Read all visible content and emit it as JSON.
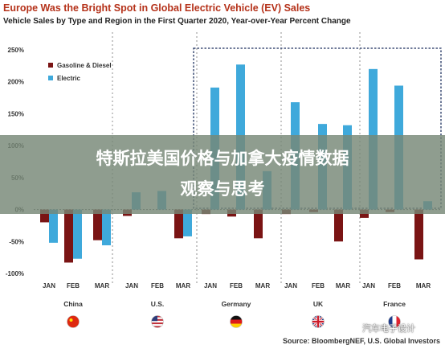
{
  "chart_data": {
    "type": "bar",
    "title": "Europe Was the Bright Spot in Global Electric Vehicle (EV) Sales",
    "subtitle": "Vehicle Sales by Type and Region in the First Quarter 2020, Year-over-Year Percent Change",
    "y_ticks": [
      "250%",
      "200%",
      "150%",
      "100%",
      "50%",
      "0%",
      "-50%",
      "-100%"
    ],
    "ylim": [
      -100,
      250
    ],
    "legend": {
      "placement": "top-left"
    },
    "colors": {
      "gasoline": "#7a1414",
      "electric": "#3fa9db"
    },
    "groups": [
      {
        "region": "China",
        "flag": "china-flag",
        "months": [
          "JAN",
          "FEB",
          "MAR"
        ],
        "series": [
          {
            "name": "Gasoline & Diesel",
            "values": [
              -20,
              -83,
              -48
            ]
          },
          {
            "name": "Electric",
            "values": [
              -52,
              -77,
              -56
            ]
          }
        ]
      },
      {
        "region": "U.S.",
        "flag": "us-flag",
        "months": [
          "JAN",
          "FEB",
          "MAR"
        ],
        "series": [
          {
            "name": "Gasoline & Diesel",
            "values": [
              -10,
              0,
              -45
            ]
          },
          {
            "name": "Electric",
            "values": [
              27,
              29,
              -42
            ]
          }
        ]
      },
      {
        "region": "Germany",
        "flag": "germany-flag",
        "months": [
          "JAN",
          "FEB",
          "MAR"
        ],
        "series": [
          {
            "name": "Gasoline & Diesel",
            "values": [
              -7,
              -11,
              -45
            ]
          },
          {
            "name": "Electric",
            "values": [
              191,
              227,
              60
            ]
          }
        ]
      },
      {
        "region": "UK",
        "flag": "uk-flag",
        "months": [
          "JAN",
          "FEB",
          "MAR"
        ],
        "series": [
          {
            "name": "Gasoline & Diesel",
            "values": [
              -7,
              -4,
              -50
            ]
          },
          {
            "name": "Electric",
            "values": [
              168,
              134,
              132
            ]
          }
        ]
      },
      {
        "region": "France",
        "flag": "france-flag",
        "months": [
          "JAN",
          "FEB",
          "MAR"
        ],
        "series": [
          {
            "name": "Gasoline & Diesel",
            "values": [
              -13,
              -4,
              -78
            ]
          },
          {
            "name": "Electric",
            "values": [
              220,
              194,
              13
            ]
          }
        ]
      }
    ],
    "source": "Source: BloombergNEF, U.S. Global Investors"
  },
  "overlay": {
    "line1": "特斯拉美国价格与加拿大疫情数据",
    "line2": "观察与思考"
  },
  "watermark": {
    "text": "汽车电子设计",
    "icon": "wechat-icon"
  }
}
